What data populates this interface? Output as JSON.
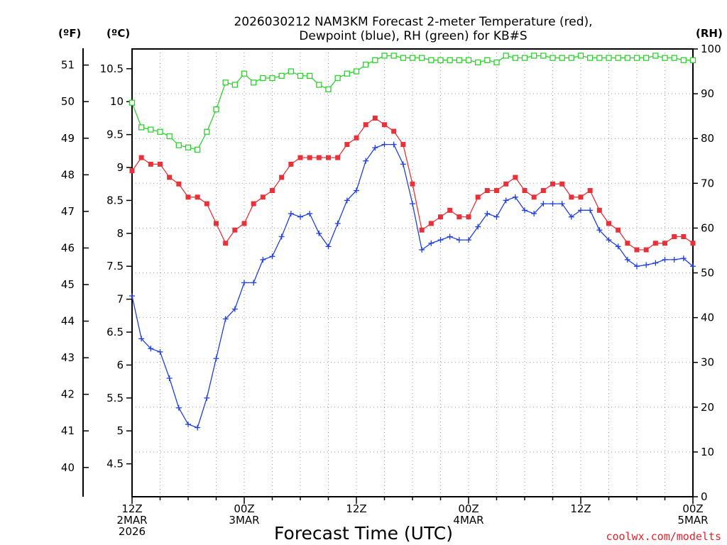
{
  "title_line1": "2026030212 NAM3KM Forecast 2-meter Temperature (red),",
  "title_line2": "Dewpoint (blue), RH (green) for KB#S",
  "units": {
    "fahrenheit": "(ºF)",
    "celsius": "(ºC)",
    "rh": "(RH)"
  },
  "xlabel": "Forecast Time (UTC)",
  "credit": "coolwx.com/modelts",
  "colors": {
    "temperature": "#e8323a",
    "dewpoint": "#2040e0",
    "rh": "#2ed12e"
  },
  "chart_data": {
    "type": "line",
    "x_axis": {
      "range_hours": [
        0,
        60
      ],
      "ticks": [
        {
          "hour": 0,
          "lines": [
            "12Z",
            "2MAR",
            "2026"
          ]
        },
        {
          "hour": 12,
          "lines": [
            "00Z",
            "3MAR"
          ]
        },
        {
          "hour": 24,
          "lines": [
            "12Z"
          ]
        },
        {
          "hour": 36,
          "lines": [
            "00Z",
            "4MAR"
          ]
        },
        {
          "hour": 48,
          "lines": [
            "12Z"
          ]
        },
        {
          "hour": 60,
          "lines": [
            "00Z",
            "5MAR"
          ]
        }
      ]
    },
    "y_left_celsius": {
      "range": [
        4.0,
        10.8
      ],
      "ticks": [
        4.5,
        5,
        5.5,
        6,
        6.5,
        7,
        7.5,
        8,
        8.5,
        9,
        9.5,
        10,
        10.5
      ]
    },
    "y_left_fahrenheit": {
      "ticks": [
        40,
        41,
        42,
        43,
        44,
        45,
        46,
        47,
        48,
        49,
        50,
        51
      ]
    },
    "y_right_rh": {
      "range": [
        0,
        100
      ],
      "ticks": [
        0,
        10,
        20,
        30,
        40,
        50,
        60,
        70,
        80,
        90,
        100
      ]
    },
    "grid": true,
    "series": [
      {
        "key": "temperature",
        "marker": "filled-square",
        "axis": "celsius",
        "x": [
          0,
          1,
          2,
          3,
          4,
          5,
          6,
          7,
          8,
          9,
          10,
          11,
          12,
          13,
          14,
          15,
          16,
          17,
          18,
          19,
          20,
          21,
          22,
          23,
          24,
          25,
          26,
          27,
          28,
          29,
          30,
          31,
          32,
          33,
          34,
          35,
          36,
          37,
          38,
          39,
          40,
          41,
          42,
          43,
          44,
          45,
          46,
          47,
          48,
          49,
          50,
          51,
          52,
          53,
          54,
          55,
          56,
          57,
          58,
          59,
          60
        ],
        "values": [
          8.95,
          9.15,
          9.05,
          9.05,
          8.85,
          8.75,
          8.55,
          8.55,
          8.45,
          8.15,
          7.85,
          8.05,
          8.15,
          8.45,
          8.55,
          8.65,
          8.85,
          9.05,
          9.15,
          9.15,
          9.15,
          9.15,
          9.15,
          9.35,
          9.45,
          9.65,
          9.75,
          9.65,
          9.55,
          9.35,
          8.75,
          8.05,
          8.15,
          8.25,
          8.35,
          8.25,
          8.25,
          8.55,
          8.65,
          8.65,
          8.75,
          8.85,
          8.65,
          8.55,
          8.65,
          8.75,
          8.75,
          8.55,
          8.55,
          8.65,
          8.35,
          8.15,
          8.05,
          7.85,
          7.75,
          7.75,
          7.85,
          7.85,
          7.95,
          7.95,
          7.85
        ]
      },
      {
        "key": "dewpoint",
        "marker": "plus",
        "axis": "celsius",
        "x": [
          0,
          1,
          2,
          3,
          4,
          5,
          6,
          7,
          8,
          9,
          10,
          11,
          12,
          13,
          14,
          15,
          16,
          17,
          18,
          19,
          20,
          21,
          22,
          23,
          24,
          25,
          26,
          27,
          28,
          29,
          30,
          31,
          32,
          33,
          34,
          35,
          36,
          37,
          38,
          39,
          40,
          41,
          42,
          43,
          44,
          45,
          46,
          47,
          48,
          49,
          50,
          51,
          52,
          53,
          54,
          55,
          56,
          57,
          58,
          59,
          60
        ],
        "values": [
          7.05,
          6.4,
          6.25,
          6.2,
          5.8,
          5.35,
          5.1,
          5.05,
          5.5,
          6.1,
          6.7,
          6.85,
          7.25,
          7.25,
          7.6,
          7.65,
          7.95,
          8.3,
          8.25,
          8.3,
          8.0,
          7.8,
          8.15,
          8.5,
          8.65,
          9.1,
          9.3,
          9.35,
          9.35,
          9.05,
          8.45,
          7.75,
          7.85,
          7.9,
          7.95,
          7.9,
          7.9,
          8.1,
          8.3,
          8.25,
          8.5,
          8.55,
          8.35,
          8.3,
          8.45,
          8.45,
          8.45,
          8.25,
          8.35,
          8.35,
          8.05,
          7.9,
          7.8,
          7.6,
          7.5,
          7.52,
          7.55,
          7.6,
          7.6,
          7.62,
          7.5
        ]
      },
      {
        "key": "rh",
        "marker": "open-square",
        "axis": "rh",
        "x": [
          0,
          1,
          2,
          3,
          4,
          5,
          6,
          7,
          8,
          9,
          10,
          11,
          12,
          13,
          14,
          15,
          16,
          17,
          18,
          19,
          20,
          21,
          22,
          23,
          24,
          25,
          26,
          27,
          28,
          29,
          30,
          31,
          32,
          33,
          34,
          35,
          36,
          37,
          38,
          39,
          40,
          41,
          42,
          43,
          44,
          45,
          46,
          47,
          48,
          49,
          50,
          51,
          52,
          53,
          54,
          55,
          56,
          57,
          58,
          59,
          60
        ],
        "values": [
          88,
          82.5,
          82,
          81.5,
          80.5,
          78.5,
          78,
          77.5,
          81.5,
          86.5,
          92.5,
          92,
          94.5,
          92.5,
          93.5,
          93.5,
          94,
          95,
          94,
          94,
          92,
          91,
          93.5,
          94.5,
          95,
          96.5,
          97.5,
          98.5,
          98.5,
          98,
          98,
          98,
          97.5,
          97.5,
          97.5,
          97.5,
          97.5,
          97,
          97.5,
          97,
          98.5,
          98,
          98,
          98.5,
          98.5,
          98,
          98,
          98,
          98.5,
          98,
          98,
          98,
          98,
          98,
          98,
          98,
          98.5,
          98,
          98,
          97.5,
          97.5
        ]
      }
    ]
  }
}
